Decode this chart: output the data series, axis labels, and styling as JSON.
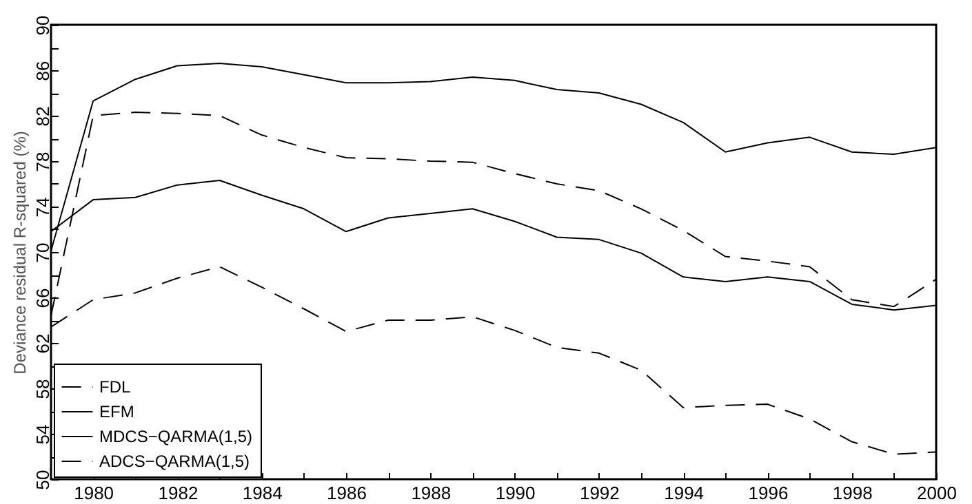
{
  "chart_data": {
    "type": "line",
    "ylabel": "Deviance residual R-squared (%)",
    "x": [
      1979,
      1980,
      1981,
      1982,
      1983,
      1984,
      1985,
      1986,
      1987,
      1988,
      1989,
      1990,
      1991,
      1992,
      1993,
      1994,
      1995,
      1996,
      1997,
      1998,
      1999,
      2000
    ],
    "series": [
      {
        "name": "FDL",
        "color": "#000000",
        "line_style": "dashed",
        "values": [
          63.4,
          65.8,
          66.4,
          67.7,
          68.7,
          66.9,
          65.0,
          63.0,
          64.0,
          64.0,
          64.3,
          63.1,
          61.6,
          61.1,
          59.6,
          56.3,
          56.5,
          56.6,
          55.3,
          53.3,
          52.2,
          52.4
        ]
      },
      {
        "name": "EFM",
        "color": "#000000",
        "line_style": "solid",
        "values": [
          71.8,
          74.6,
          74.8,
          75.9,
          76.3,
          75.0,
          73.8,
          71.8,
          73.0,
          73.4,
          73.8,
          72.7,
          71.3,
          71.1,
          69.9,
          67.8,
          67.4,
          67.8,
          67.4,
          65.4,
          64.9,
          65.3
        ]
      },
      {
        "name": "MDCS−QARMA(1,5)",
        "color": "#000000",
        "line_style": "solid",
        "values": [
          70.1,
          83.3,
          85.2,
          86.4,
          86.6,
          86.3,
          85.6,
          84.9,
          84.9,
          85.0,
          85.4,
          85.1,
          84.3,
          84.0,
          83.0,
          81.4,
          78.8,
          79.6,
          80.1,
          78.8,
          78.6,
          79.2
        ]
      },
      {
        "name": "ADCS−QARMA(1,5)",
        "color": "#000000",
        "line_style": "dashed",
        "values": [
          64.4,
          82.0,
          82.3,
          82.2,
          82.0,
          80.3,
          79.2,
          78.3,
          78.2,
          78.0,
          77.9,
          76.9,
          76.0,
          75.4,
          73.8,
          71.9,
          69.6,
          69.2,
          68.7,
          65.8,
          65.2,
          67.6
        ]
      }
    ],
    "xlim": [
      1979,
      2000
    ],
    "xticks": [
      1980,
      {
        "value": 1981,
        "label": null
      },
      1982,
      {
        "value": 1983,
        "label": null
      },
      1984,
      {
        "value": 1985,
        "label": null
      },
      1986,
      {
        "value": 1987,
        "label": null
      },
      1988,
      {
        "value": 1989,
        "label": null
      },
      1990,
      {
        "value": 1991,
        "label": null
      },
      1992,
      {
        "value": 1993,
        "label": null
      },
      1994,
      {
        "value": 1995,
        "label": null
      },
      1996,
      {
        "value": 1997,
        "label": null
      },
      1998,
      {
        "value": 1999,
        "label": null
      },
      2000
    ],
    "ylim": [
      50,
      90
    ],
    "yticks": [
      50,
      {
        "value": 52,
        "label": null
      },
      54,
      {
        "value": 56,
        "label": null
      },
      58,
      {
        "value": 60,
        "label": null
      },
      62,
      {
        "value": 64,
        "label": null
      },
      66,
      {
        "value": 68,
        "label": null
      },
      70,
      {
        "value": 72,
        "label": null
      },
      74,
      {
        "value": 76,
        "label": null
      },
      78,
      {
        "value": 80,
        "label": null
      },
      82,
      {
        "value": 84,
        "label": null
      },
      86,
      {
        "value": 88,
        "label": null
      },
      90
    ],
    "legend": "bottom left"
  }
}
